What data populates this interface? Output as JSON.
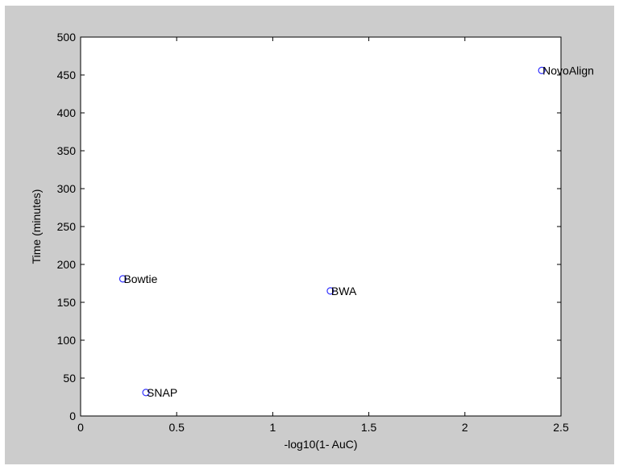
{
  "chart_data": {
    "type": "scatter",
    "xlabel": "-log10(1- AuC)",
    "ylabel": "Time (minutes)",
    "xlim": [
      0,
      2.5
    ],
    "ylim": [
      0,
      500
    ],
    "x_ticks": [
      0,
      0.5,
      1,
      1.5,
      2,
      2.5
    ],
    "x_tick_labels": [
      "0",
      "0.5",
      "1",
      "1.5",
      "2",
      "2.5"
    ],
    "y_ticks": [
      0,
      50,
      100,
      150,
      200,
      250,
      300,
      350,
      400,
      450,
      500
    ],
    "y_tick_labels": [
      "0",
      "50",
      "100",
      "150",
      "200",
      "250",
      "300",
      "350",
      "400",
      "450",
      "500"
    ],
    "grid": false,
    "marker": "circle",
    "marker_color": "#3333ff",
    "points": [
      {
        "label": "NovoAlign",
        "x": 2.4,
        "y": 456
      },
      {
        "label": "Bowtie",
        "x": 0.22,
        "y": 181
      },
      {
        "label": "BWA",
        "x": 1.3,
        "y": 165
      },
      {
        "label": "SNAP",
        "x": 0.34,
        "y": 31
      }
    ]
  }
}
